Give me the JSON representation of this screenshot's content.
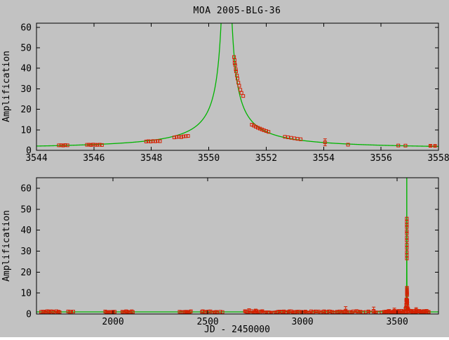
{
  "window": {
    "title": "MOA 2005-BLG-36"
  },
  "colors": {
    "background": "#c2c2c2",
    "frame": "#000000",
    "model_curve": "#00b400",
    "data_points": "#d42000",
    "text": "#000000"
  },
  "chart_data": [
    {
      "type": "scatter",
      "panel": "top-zoom",
      "title": "MOA 2005-BLG-36",
      "xlabel": "",
      "ylabel": "Amplification",
      "xlim": [
        3544,
        3558
      ],
      "ylim": [
        0,
        62
      ],
      "xticks": [
        3544,
        3546,
        3548,
        3550,
        3552,
        3554,
        3556,
        3558
      ],
      "yticks": [
        0,
        10,
        20,
        30,
        40,
        50,
        60
      ],
      "grid": false,
      "legend": false,
      "model": {
        "kind": "point-lens-microlensing",
        "t0": 3550.62,
        "tE": 12.5,
        "u0": 0.005,
        "baseline_amp": 1
      },
      "points": [
        [
          3544.78,
          2.45
        ],
        [
          3544.86,
          2.5
        ],
        [
          3544.93,
          2.35
        ],
        [
          3545.0,
          2.55
        ],
        [
          3545.08,
          2.45
        ],
        [
          3545.76,
          2.7
        ],
        [
          3545.83,
          2.75
        ],
        [
          3545.9,
          2.6
        ],
        [
          3545.97,
          2.8
        ],
        [
          3546.05,
          2.7
        ],
        [
          3546.12,
          2.65
        ],
        [
          3546.2,
          2.75
        ],
        [
          3546.28,
          2.6
        ],
        [
          3547.82,
          4.3
        ],
        [
          3547.9,
          4.45
        ],
        [
          3547.98,
          4.3
        ],
        [
          3548.06,
          4.5
        ],
        [
          3548.14,
          4.4
        ],
        [
          3548.22,
          4.55
        ],
        [
          3548.3,
          4.45
        ],
        [
          3548.8,
          6.3
        ],
        [
          3548.88,
          6.5
        ],
        [
          3548.96,
          6.6
        ],
        [
          3549.04,
          6.45
        ],
        [
          3549.12,
          6.8
        ],
        [
          3549.2,
          6.9
        ],
        [
          3549.28,
          7.0
        ],
        [
          3550.88,
          45.5
        ],
        [
          3550.9,
          44.0
        ],
        [
          3550.9,
          42.5
        ],
        [
          3550.92,
          41.5
        ],
        [
          3550.94,
          39.5
        ],
        [
          3550.95,
          38.5
        ],
        [
          3550.98,
          36.5
        ],
        [
          3551.0,
          35.0
        ],
        [
          3551.03,
          33.0
        ],
        [
          3551.06,
          31.5
        ],
        [
          3551.1,
          29.5
        ],
        [
          3551.14,
          28.0
        ],
        [
          3551.2,
          26.5
        ],
        [
          3551.5,
          12.5
        ],
        [
          3551.57,
          12.0
        ],
        [
          3551.64,
          11.5
        ],
        [
          3551.71,
          11.0
        ],
        [
          3551.78,
          10.6
        ],
        [
          3551.85,
          10.2
        ],
        [
          3551.92,
          9.8
        ],
        [
          3552.0,
          9.4
        ],
        [
          3552.08,
          9.0
        ],
        [
          3552.65,
          6.6
        ],
        [
          3552.76,
          6.35
        ],
        [
          3552.87,
          6.1
        ],
        [
          3552.98,
          5.85
        ],
        [
          3553.09,
          5.6
        ],
        [
          3553.2,
          5.4
        ],
        [
          3554.05,
          3.9,
          1.7
        ],
        [
          3554.85,
          2.75
        ],
        [
          3556.6,
          2.35
        ],
        [
          3556.85,
          2.3
        ],
        [
          3557.72,
          2.2,
          0.4
        ],
        [
          3557.88,
          2.15,
          0.4
        ]
      ]
    },
    {
      "type": "scatter",
      "panel": "bottom-full",
      "title": "",
      "xlabel": "JD - 2450000",
      "ylabel": "Amplification",
      "xlim": [
        1596,
        3718
      ],
      "ylim": [
        0,
        65
      ],
      "xticks": [
        2000,
        2500,
        3000,
        3500
      ],
      "yticks": [
        0,
        10,
        20,
        30,
        40,
        50,
        60
      ],
      "grid": false,
      "legend": false,
      "model": {
        "kind": "point-lens-microlensing",
        "t0": 3550.62,
        "tE": 12.5,
        "u0": 0.005,
        "baseline_amp": 1
      },
      "note": "peak column at JD~3551 repeats the top-panel points at this compressed x-scale",
      "includes_top_panel_points": true,
      "baseline_clusters": [
        {
          "from": 1620,
          "to": 1720,
          "n": 16,
          "amp": 1.0,
          "jitter": 0.35,
          "err": 0
        },
        {
          "from": 1763,
          "to": 1790,
          "n": 4,
          "amp": 1.05,
          "jitter": 0.3,
          "err": 0
        },
        {
          "from": 1958,
          "to": 2008,
          "n": 10,
          "amp": 1.0,
          "jitter": 0.3,
          "err": 0
        },
        {
          "from": 2048,
          "to": 2105,
          "n": 10,
          "amp": 1.0,
          "jitter": 0.3,
          "err": 0
        },
        {
          "from": 2352,
          "to": 2412,
          "n": 10,
          "amp": 1.0,
          "jitter": 0.3,
          "err": 0
        },
        {
          "from": 2468,
          "to": 2552,
          "n": 12,
          "amp": 1.0,
          "jitter": 0.35,
          "err": 0
        },
        {
          "from": 2566,
          "to": 2576,
          "n": 2,
          "amp": 1.1,
          "jitter": 0.2,
          "err": 0
        },
        {
          "from": 2695,
          "to": 3055,
          "n": 48,
          "amp": 1.0,
          "jitter": 0.4,
          "err": 0.35
        },
        {
          "from": 3068,
          "to": 3300,
          "n": 30,
          "amp": 1.05,
          "jitter": 0.45,
          "err": 0.55
        },
        {
          "from": 3305,
          "to": 3430,
          "n": 10,
          "amp": 1.0,
          "jitter": 0.35,
          "err": 0.4
        },
        {
          "from": 3440,
          "to": 3545,
          "n": 26,
          "amp": 1.1,
          "jitter": 0.45,
          "err": 0.55
        },
        {
          "from": 3555,
          "to": 3665,
          "n": 26,
          "amp": 1.05,
          "jitter": 0.5,
          "err": 0.55
        }
      ],
      "outlier_points": [
        [
          2718,
          1.7,
          0.8
        ],
        [
          2753,
          1.6,
          0.7
        ],
        [
          3228,
          1.6,
          1.9
        ],
        [
          3376,
          1.5,
          1.8
        ],
        [
          3485,
          1.5,
          1.3
        ],
        [
          3600,
          1.8,
          1.2
        ],
        [
          3642,
          -0.3,
          0.5
        ]
      ]
    }
  ]
}
